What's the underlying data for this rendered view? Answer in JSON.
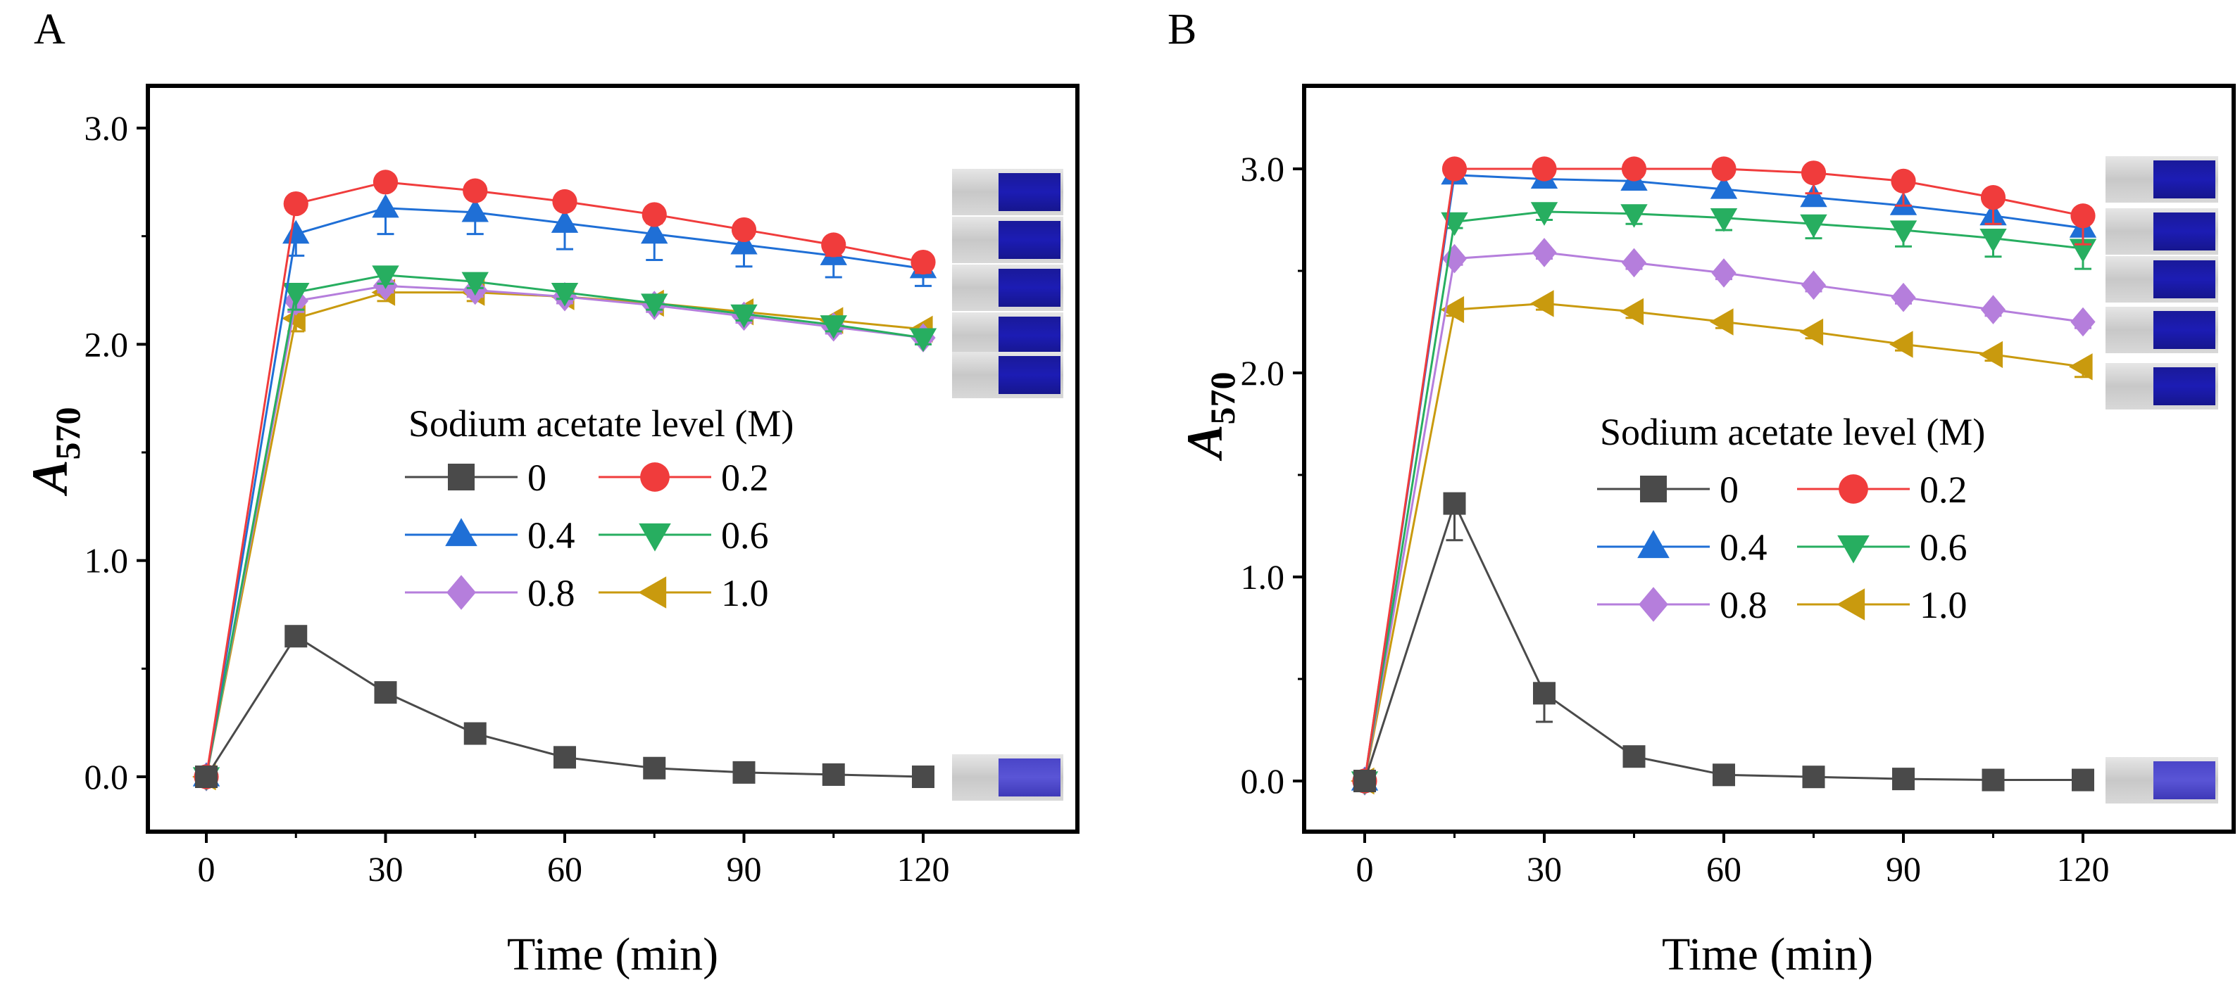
{
  "chart_data": [
    {
      "panel": "A",
      "type": "line",
      "xlabel": "Time (min)",
      "ylabel": "A",
      "ylabel_subscript": "570",
      "xticks": [
        "0",
        "30",
        "60",
        "90",
        "120"
      ],
      "yticks": [
        "0.0",
        "1.0",
        "2.0",
        "3.0"
      ],
      "xlim": [
        -10,
        145
      ],
      "ylim": [
        -0.25,
        3.3
      ],
      "legend_title": "Sodium acetate level (M)",
      "x": [
        0,
        15,
        30,
        45,
        60,
        75,
        90,
        105,
        120
      ],
      "series": [
        {
          "name": "0",
          "marker": "square",
          "color": "#4a4a4a",
          "values": [
            0.0,
            0.65,
            0.39,
            0.2,
            0.09,
            0.04,
            0.02,
            0.01,
            0.0
          ]
        },
        {
          "name": "0.2",
          "marker": "circle",
          "color": "#f03c3c",
          "values": [
            0.0,
            2.65,
            2.75,
            2.71,
            2.66,
            2.6,
            2.53,
            2.46,
            2.38
          ],
          "errors": [
            0,
            0.0,
            0.03,
            0.03,
            0.03,
            0.04,
            0.04,
            0.05,
            0.05
          ]
        },
        {
          "name": "0.4",
          "marker": "triangle-up",
          "color": "#1f6fd6",
          "values": [
            0.0,
            2.51,
            2.63,
            2.61,
            2.56,
            2.51,
            2.46,
            2.41,
            2.35
          ],
          "errors": [
            0,
            0.1,
            0.12,
            0.1,
            0.12,
            0.12,
            0.1,
            0.1,
            0.08
          ]
        },
        {
          "name": "0.6",
          "marker": "triangle-down",
          "color": "#27ae60",
          "values": [
            0.0,
            2.24,
            2.32,
            2.29,
            2.24,
            2.19,
            2.14,
            2.09,
            2.03
          ],
          "errors": [
            0,
            0.08,
            0.04,
            0.03,
            0.03,
            0.03,
            0.03,
            0.03,
            0.03
          ]
        },
        {
          "name": "0.8",
          "marker": "diamond",
          "color": "#b57edc",
          "values": [
            0.0,
            2.2,
            2.27,
            2.25,
            2.22,
            2.18,
            2.13,
            2.08,
            2.03
          ],
          "errors": [
            0,
            0.05,
            0.03,
            0.03,
            0.03,
            0.03,
            0.03,
            0.03,
            0.03
          ]
        },
        {
          "name": "1.0",
          "marker": "triangle-left",
          "color": "#c99a0e",
          "values": [
            0.0,
            2.12,
            2.24,
            2.24,
            2.22,
            2.19,
            2.15,
            2.11,
            2.07
          ],
          "errors": [
            0,
            0.06,
            0.04,
            0.04,
            0.03,
            0.03,
            0.03,
            0.03,
            0.03
          ]
        }
      ]
    },
    {
      "panel": "B",
      "type": "line",
      "xlabel": "Time (min)",
      "ylabel": "A",
      "ylabel_subscript": "570",
      "xticks": [
        "0",
        "30",
        "60",
        "90",
        "120"
      ],
      "yticks": [
        "0.0",
        "1.0",
        "2.0",
        "3.0"
      ],
      "xlim": [
        -10,
        145
      ],
      "ylim": [
        -0.25,
        3.4
      ],
      "legend_title": "Sodium acetate level (M)",
      "x": [
        0,
        15,
        30,
        45,
        60,
        75,
        90,
        105,
        120
      ],
      "series": [
        {
          "name": "0",
          "marker": "square",
          "color": "#4a4a4a",
          "values": [
            0.0,
            1.36,
            0.43,
            0.12,
            0.03,
            0.02,
            0.01,
            0.005,
            0.005
          ],
          "errors": [
            0,
            0.18,
            0.14,
            0.0,
            0.0,
            0.0,
            0.0,
            0.0,
            0.0
          ]
        },
        {
          "name": "0.2",
          "marker": "circle",
          "color": "#f03c3c",
          "values": [
            0.0,
            3.0,
            3.0,
            3.0,
            3.0,
            2.98,
            2.94,
            2.86,
            2.77
          ],
          "errors": [
            0,
            0.0,
            0.0,
            0.0,
            0.0,
            0.1,
            0.12,
            0.13,
            0.14
          ]
        },
        {
          "name": "0.4",
          "marker": "triangle-up",
          "color": "#1f6fd6",
          "values": [
            0.0,
            2.97,
            2.95,
            2.94,
            2.9,
            2.86,
            2.82,
            2.77,
            2.71
          ],
          "errors": [
            0,
            0.0,
            0.03,
            0.03,
            0.04,
            0.04,
            0.04,
            0.04,
            0.04
          ]
        },
        {
          "name": "0.6",
          "marker": "triangle-down",
          "color": "#27ae60",
          "values": [
            0.0,
            2.74,
            2.79,
            2.78,
            2.76,
            2.73,
            2.7,
            2.66,
            2.61
          ],
          "errors": [
            0,
            0.03,
            0.04,
            0.05,
            0.06,
            0.07,
            0.08,
            0.09,
            0.1
          ]
        },
        {
          "name": "0.8",
          "marker": "diamond",
          "color": "#b57edc",
          "values": [
            0.0,
            2.56,
            2.59,
            2.54,
            2.49,
            2.43,
            2.37,
            2.31,
            2.25
          ],
          "errors": [
            0,
            0.03,
            0.03,
            0.03,
            0.03,
            0.03,
            0.03,
            0.03,
            0.03
          ]
        },
        {
          "name": "1.0",
          "marker": "triangle-left",
          "color": "#c99a0e",
          "values": [
            0.0,
            2.31,
            2.34,
            2.3,
            2.25,
            2.2,
            2.14,
            2.09,
            2.03
          ],
          "errors": [
            0,
            0.03,
            0.03,
            0.03,
            0.03,
            0.03,
            0.03,
            0.03,
            0.05
          ]
        }
      ]
    }
  ]
}
